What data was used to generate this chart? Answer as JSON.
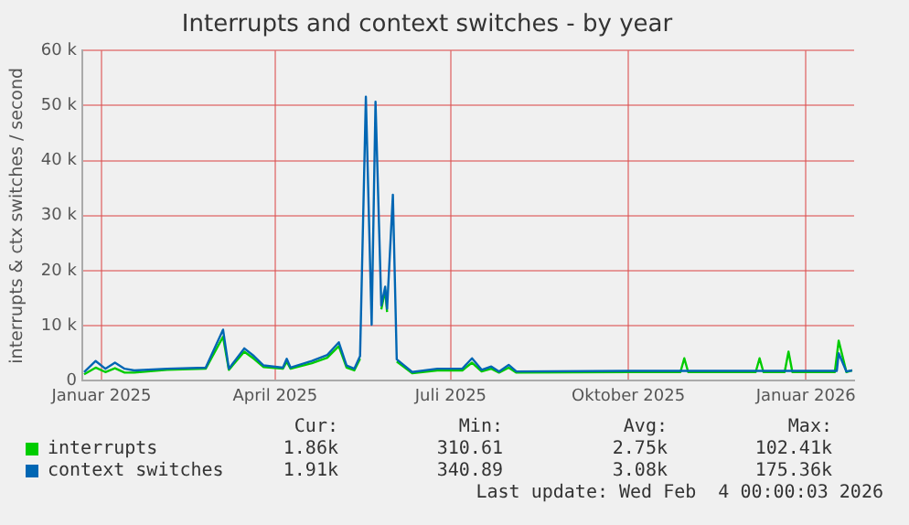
{
  "chart_data": {
    "type": "line",
    "title": "Interrupts and context switches - by year",
    "ylabel": "interrupts & ctx switches / second",
    "xlim": [
      "2024-12-22",
      "2026-01-26"
    ],
    "xticks": [
      {
        "value": "2025-01-01",
        "label": "Januar 2025"
      },
      {
        "value": "2025-04-01",
        "label": "April 2025"
      },
      {
        "value": "2025-07-01",
        "label": "Juli 2025"
      },
      {
        "value": "2025-10-01",
        "label": "Oktober 2025"
      },
      {
        "value": "2026-01-01",
        "label": "Januar 2026"
      }
    ],
    "ylim": [
      0,
      60000
    ],
    "yticks": [
      0,
      {
        "value": 10000,
        "label": "10 k"
      },
      {
        "value": 20000,
        "label": "20 k"
      },
      {
        "value": 30000,
        "label": "30 k"
      },
      {
        "value": 40000,
        "label": "40 k"
      },
      {
        "value": 50000,
        "label": "50 k"
      },
      {
        "value": 60000,
        "label": "60 k"
      }
    ],
    "grid": true,
    "legend": "bottom",
    "marker": "none",
    "line_style": "solid",
    "series": [
      {
        "name": "interrupts",
        "color": "#00cc00",
        "x": [
          "2024-12-23",
          "2024-12-29",
          "2025-01-03",
          "2025-01-08",
          "2025-01-13",
          "2025-01-18",
          "2025-02-04",
          "2025-02-24",
          "2025-03-05",
          "2025-03-08",
          "2025-03-16",
          "2025-03-21",
          "2025-03-26",
          "2025-04-05",
          "2025-04-07",
          "2025-04-09",
          "2025-04-20",
          "2025-04-28",
          "2025-05-04",
          "2025-05-08",
          "2025-05-12",
          "2025-05-15",
          "2025-05-18",
          "2025-05-21",
          "2025-05-23",
          "2025-05-26",
          "2025-05-28",
          "2025-05-29",
          "2025-06-01",
          "2025-06-03",
          "2025-06-11",
          "2025-06-24",
          "2025-07-07",
          "2025-07-12",
          "2025-07-17",
          "2025-07-22",
          "2025-07-26",
          "2025-07-31",
          "2025-08-04",
          "2025-10-02",
          "2025-10-28",
          "2025-10-30",
          "2025-11-01",
          "2025-12-06",
          "2025-12-08",
          "2025-12-10",
          "2025-12-21",
          "2025-12-23",
          "2025-12-25",
          "2026-01-16",
          "2026-01-18",
          "2026-01-22",
          "2026-01-25"
        ],
        "values": [
          1200,
          2400,
          1600,
          2300,
          1500,
          1500,
          2000,
          2200,
          8000,
          2000,
          5300,
          4000,
          2500,
          2200,
          3500,
          2200,
          3200,
          4200,
          6300,
          2400,
          1900,
          4000,
          null,
          null,
          null,
          13000,
          16500,
          12500,
          null,
          3500,
          1400,
          1900,
          1900,
          3300,
          1700,
          2200,
          1500,
          2400,
          1500,
          1600,
          1600,
          4100,
          1600,
          1600,
          4100,
          1600,
          1600,
          5300,
          1600,
          1600,
          7300,
          1600,
          1900
        ]
      },
      {
        "name": "context switches",
        "color": "#0066b3",
        "x": [
          "2024-12-23",
          "2024-12-29",
          "2025-01-03",
          "2025-01-08",
          "2025-01-13",
          "2025-01-18",
          "2025-02-04",
          "2025-02-24",
          "2025-03-05",
          "2025-03-08",
          "2025-03-16",
          "2025-03-21",
          "2025-03-26",
          "2025-04-05",
          "2025-04-07",
          "2025-04-09",
          "2025-04-20",
          "2025-04-28",
          "2025-05-04",
          "2025-05-08",
          "2025-05-12",
          "2025-05-15",
          "2025-05-18",
          "2025-05-21",
          "2025-05-23",
          "2025-05-26",
          "2025-05-28",
          "2025-05-29",
          "2025-06-01",
          "2025-06-03",
          "2025-06-11",
          "2025-06-24",
          "2025-07-07",
          "2025-07-12",
          "2025-07-17",
          "2025-07-22",
          "2025-07-26",
          "2025-07-31",
          "2025-08-04",
          "2025-10-02",
          "2025-11-21",
          "2026-01-17",
          "2026-01-18",
          "2026-01-22",
          "2026-01-25"
        ],
        "values": [
          1600,
          3600,
          2200,
          3300,
          2200,
          1900,
          2200,
          2400,
          9300,
          2200,
          5900,
          4500,
          2800,
          2400,
          4000,
          2400,
          3600,
          4700,
          7000,
          2800,
          2200,
          4500,
          51600,
          10200,
          50700,
          13700,
          17100,
          13100,
          33800,
          3900,
          1600,
          2200,
          2200,
          4100,
          2000,
          2600,
          1700,
          2900,
          1700,
          1800,
          1800,
          1800,
          5000,
          1700,
          1900
        ]
      }
    ],
    "annotations": [
      "Cur:",
      "Min:",
      "Avg:",
      "Max:",
      "1.86k",
      "310.61",
      "2.75k",
      "102.41k",
      "1.91k",
      "340.89",
      "3.08k",
      "175.36k",
      "Last update: Wed Feb  4 00:00:03 2026"
    ]
  }
}
